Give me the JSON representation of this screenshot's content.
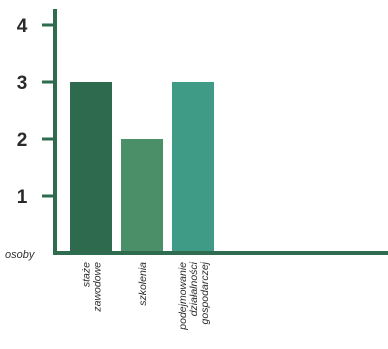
{
  "chart_data": {
    "type": "bar",
    "categories": [
      [
        "staże",
        "zawodowe"
      ],
      [
        "szkolenia"
      ],
      [
        "podejmowanie",
        "działalności",
        "gospodarczej"
      ]
    ],
    "values": [
      3,
      2,
      3
    ],
    "colors": [
      "#2e6b4e",
      "#4a8f68",
      "#3f9a86"
    ],
    "axis_color": "#2f6b4f",
    "ylabel": "osoby",
    "ylim": [
      0,
      4
    ],
    "yticks": [
      1,
      2,
      3,
      4
    ],
    "grid": false,
    "legend": "none"
  }
}
